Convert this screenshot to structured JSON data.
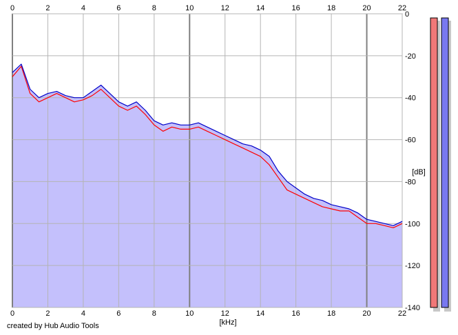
{
  "credit": "created by Hub Audio Tools",
  "chart_data": {
    "type": "area",
    "title": "",
    "xlabel": "[kHz]",
    "ylabel": "[dB]",
    "xlim": [
      0,
      22
    ],
    "ylim": [
      -140,
      0
    ],
    "x_ticks": [
      0,
      2,
      4,
      6,
      8,
      10,
      12,
      14,
      16,
      18,
      20,
      22
    ],
    "y_ticks": [
      0,
      -20,
      -40,
      -60,
      -80,
      -100,
      -120,
      -140
    ],
    "grid": true,
    "colors": {
      "fill": "#c4c0fc",
      "red": "#ff0000",
      "blue": "#0000c8",
      "grid": "#b4b4b4",
      "major_grid": "#808080"
    },
    "series": [
      {
        "color": "red",
        "x": [
          0,
          0.5,
          1,
          1.5,
          2,
          2.5,
          3,
          3.5,
          4,
          4.5,
          5,
          5.5,
          6,
          6.5,
          7,
          7.5,
          8,
          8.5,
          9,
          9.5,
          10,
          10.5,
          11,
          11.5,
          12,
          12.5,
          13,
          13.5,
          14,
          14.5,
          15,
          15.5,
          16,
          16.5,
          17,
          17.5,
          18,
          18.5,
          19,
          19.5,
          20,
          20.5,
          21,
          21.5,
          22
        ],
        "y": [
          -30,
          -25,
          -38,
          -42,
          -40,
          -38,
          -40,
          -42,
          -41,
          -39,
          -36,
          -40,
          -44,
          -46,
          -44,
          -48,
          -53,
          -56,
          -54,
          -55,
          -55,
          -54,
          -56,
          -58,
          -60,
          -62,
          -64,
          -66,
          -68,
          -72,
          -78,
          -84,
          -86,
          -88,
          -90,
          -92,
          -93,
          -94,
          -94,
          -97,
          -100,
          -100,
          -101,
          -102,
          -100
        ]
      },
      {
        "color": "blue",
        "x": [
          0,
          0.5,
          1,
          1.5,
          2,
          2.5,
          3,
          3.5,
          4,
          4.5,
          5,
          5.5,
          6,
          6.5,
          7,
          7.5,
          8,
          8.5,
          9,
          9.5,
          10,
          10.5,
          11,
          11.5,
          12,
          12.5,
          13,
          13.5,
          14,
          14.5,
          15,
          15.5,
          16,
          16.5,
          17,
          17.5,
          18,
          18.5,
          19,
          19.5,
          20,
          20.5,
          21,
          21.5,
          22
        ],
        "y": [
          -28,
          -24,
          -36,
          -40,
          -38,
          -37,
          -39,
          -40,
          -40,
          -37,
          -34,
          -38,
          -42,
          -44,
          -42,
          -46,
          -51,
          -53,
          -52,
          -53,
          -53,
          -52,
          -54,
          -56,
          -58,
          -60,
          -62,
          -63,
          -65,
          -68,
          -75,
          -80,
          -83,
          -86,
          -88,
          -89,
          -91,
          -92,
          -93,
          -95,
          -98,
          -99,
          -100,
          -101,
          -99
        ]
      }
    ],
    "level_meter": {
      "bars": [
        {
          "channel": "left",
          "color": "#f07878",
          "level_db": -140
        },
        {
          "channel": "right",
          "color": "#7878f0",
          "level_db": -140
        }
      ]
    }
  }
}
